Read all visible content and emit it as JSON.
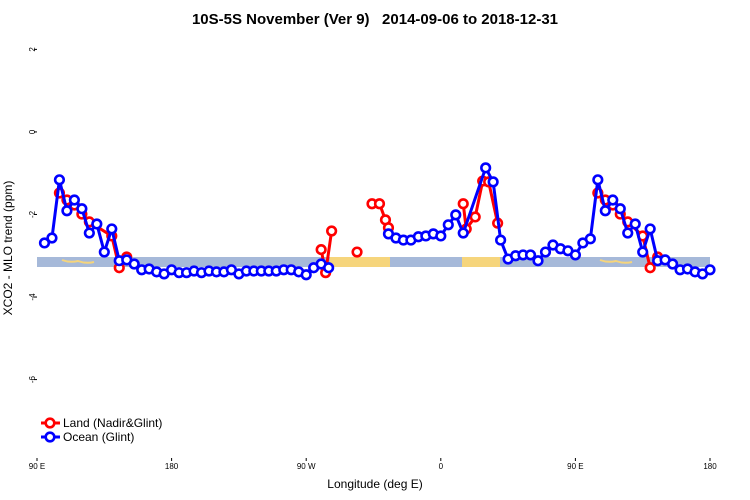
{
  "chart_data": {
    "type": "line",
    "title": "10S-5S November (Ver 9)   2014-09-06 to 2018-12-31",
    "xlabel": "Longitude (deg E)",
    "ylabel": "XCO2 - MLO trend (ppm)",
    "xlim": [
      90,
      540
    ],
    "ylim": [
      -7.9,
      2.3
    ],
    "xticks": [
      {
        "value": 90,
        "label": "90 E"
      },
      180,
      {
        "value": 270,
        "label": "90 W"
      },
      {
        "value": 360,
        "label": "0"
      },
      {
        "value": 450,
        "label": "90 E"
      },
      {
        "value": 540,
        "label": "180"
      }
    ],
    "yticks": [
      -6,
      -4,
      -2,
      0,
      2
    ],
    "legend": "bottom-left",
    "series": [
      {
        "name": "Land (Nadir&Glint)",
        "color": "#ff0000",
        "x": [
          105,
          110,
          115,
          120,
          125,
          140,
          145,
          150,
          null,
          280,
          283,
          287,
          null,
          304,
          null,
          314,
          319,
          323,
          325,
          null,
          375,
          377,
          383,
          388,
          392,
          398,
          null,
          465,
          470,
          475,
          480,
          485,
          495,
          500,
          505
        ],
        "values": [
          -1.48,
          -1.65,
          -1.77,
          -1.99,
          -2.18,
          -2.52,
          -3.29,
          -3.03,
          null,
          -2.85,
          -3.41,
          -2.4,
          null,
          -2.91,
          null,
          -1.74,
          -1.74,
          -2.13,
          -2.32,
          null,
          -1.74,
          -2.35,
          -2.06,
          -1.19,
          -1.21,
          -2.21,
          null,
          -1.48,
          -1.65,
          -1.77,
          -1.99,
          -2.18,
          -2.52,
          -3.29,
          -3.03
        ]
      },
      {
        "name": "Ocean (Glint)",
        "color": "#0000ff",
        "x": [
          95,
          100,
          105,
          110,
          115,
          120,
          125,
          130,
          135,
          140,
          145,
          150,
          155,
          160,
          165,
          170,
          175,
          180,
          185,
          190,
          195,
          200,
          205,
          210,
          215,
          220,
          225,
          230,
          235,
          240,
          245,
          250,
          255,
          260,
          265,
          270,
          275,
          280,
          285,
          null,
          325,
          330,
          335,
          340,
          345,
          350,
          355,
          360,
          365,
          370,
          375,
          390,
          395,
          400,
          405,
          410,
          415,
          420,
          425,
          430,
          435,
          440,
          445,
          450,
          455,
          460,
          465,
          470,
          475,
          480,
          485,
          490,
          495,
          500,
          505,
          510,
          515,
          520,
          525,
          530,
          535,
          540
        ],
        "values": [
          -2.69,
          -2.57,
          -1.16,
          -1.91,
          -1.65,
          -1.86,
          -2.45,
          -2.23,
          -2.91,
          -2.35,
          -3.12,
          -3.1,
          -3.2,
          -3.34,
          -3.32,
          -3.39,
          -3.44,
          -3.34,
          -3.41,
          -3.41,
          -3.37,
          -3.41,
          -3.37,
          -3.39,
          -3.39,
          -3.34,
          -3.44,
          -3.37,
          -3.37,
          -3.37,
          -3.37,
          -3.37,
          -3.34,
          -3.34,
          -3.39,
          -3.46,
          -3.29,
          -3.2,
          -3.29,
          null,
          -2.47,
          -2.57,
          -2.62,
          -2.62,
          -2.54,
          -2.52,
          -2.47,
          -2.52,
          -2.25,
          -2.01,
          -2.45,
          -0.87,
          -1.21,
          -2.62,
          -3.08,
          -3.0,
          -2.98,
          -2.98,
          -3.12,
          -2.91,
          -2.74,
          -2.83,
          -2.88,
          -2.98,
          -2.69,
          -2.59,
          -1.16,
          -1.91,
          -1.65,
          -1.86,
          -2.45,
          -2.23,
          -2.91,
          -2.35,
          -3.12,
          -3.1,
          -3.2,
          -3.34,
          -3.32,
          -3.39,
          -3.44,
          -3.34
        ]
      }
    ]
  }
}
